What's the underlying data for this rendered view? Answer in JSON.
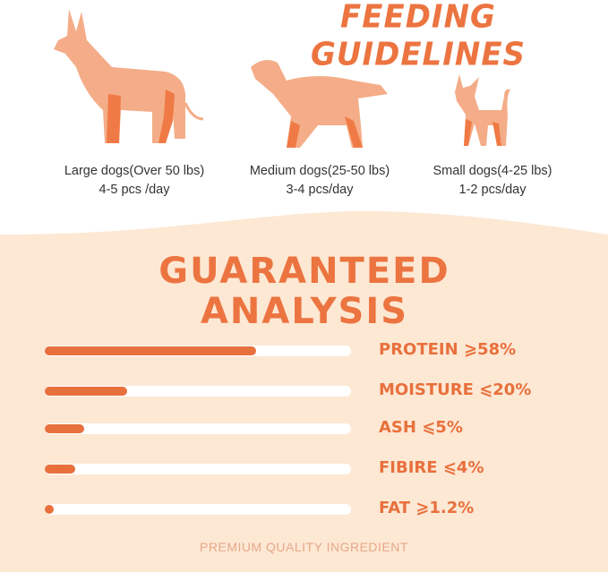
{
  "feeding": {
    "title": "FEEDING GUIDELINES",
    "dogs": [
      {
        "size": "Large dogs(Over 50 lbs)",
        "amount": "4-5 pcs /day",
        "icon": "large-dog-icon"
      },
      {
        "size": "Medium dogs(25-50 lbs)",
        "amount": "3-4 pcs/day",
        "icon": "medium-dog-icon"
      },
      {
        "size": "Small dogs(4-25 lbs)",
        "amount": "1-2 pcs/day",
        "icon": "small-dog-icon"
      }
    ]
  },
  "analysis": {
    "title_line1": "GUARANTEED",
    "title_line2": "ANALYSIS",
    "items": [
      {
        "label": "PROTEIN ⩾58%",
        "fill_percent": 69
      },
      {
        "label": "MOISTURE ⩽20%",
        "fill_percent": 27
      },
      {
        "label": "ASH ⩽5%",
        "fill_percent": 13
      },
      {
        "label": "FIBIRE ⩽4%",
        "fill_percent": 10
      },
      {
        "label": "FAT ⩾1.2%",
        "fill_percent": 3
      }
    ]
  },
  "footer": "PREMIUM QUALITY INGREDIENT",
  "colors": {
    "accent": "#e8703c",
    "background": "#fde8d4",
    "dog_body": "#f4ad88",
    "dog_legs": "#f07a45"
  }
}
